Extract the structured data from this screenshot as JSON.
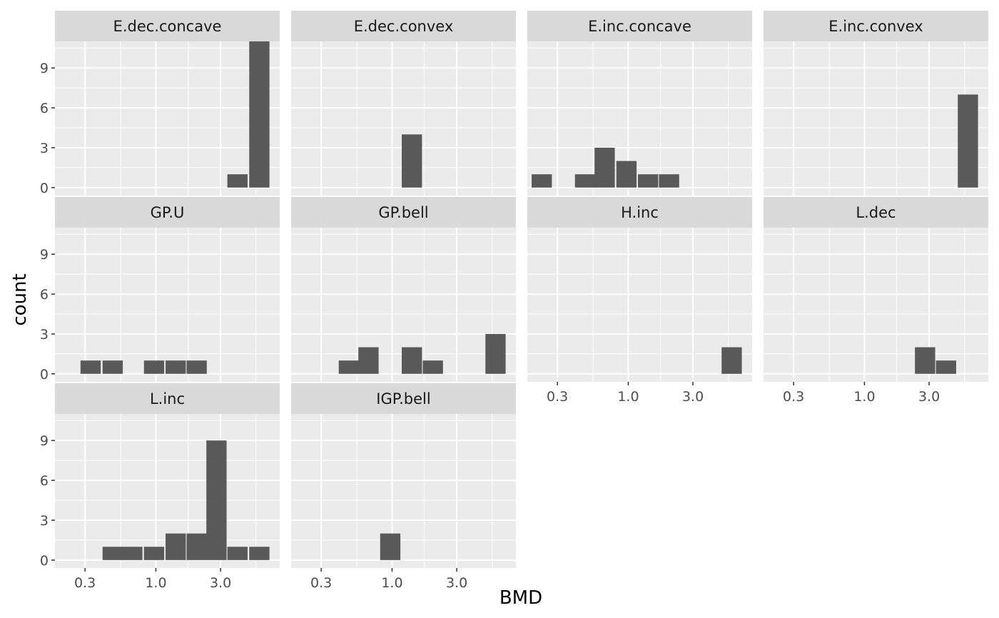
{
  "chart_data": {
    "type": "bar",
    "subtype": "faceted histogram",
    "xlabel": "BMD",
    "ylabel": "count",
    "x_scale": "log10",
    "x_ticks": [
      0.3,
      1.0,
      3.0
    ],
    "x_tick_labels": [
      "0.3",
      "1.0",
      "3.0"
    ],
    "y_ticks": [
      0,
      3,
      6,
      9
    ],
    "y_tick_labels": [
      "0",
      "3",
      "6",
      "9"
    ],
    "ylim": [
      0,
      11
    ],
    "grid": true,
    "colors": {
      "bar": "#595959",
      "panel": "#ebebeb",
      "strip": "#d9d9d9",
      "grid": "#ffffff"
    },
    "panels": [
      {
        "name": "E.dec.concave",
        "bins": [
          {
            "x": 4.0,
            "count": 1
          },
          {
            "x": 5.8,
            "count": 11
          }
        ]
      },
      {
        "name": "E.dec.convex",
        "bins": [
          {
            "x": 1.4,
            "count": 4
          }
        ]
      },
      {
        "name": "E.inc.concave",
        "bins": [
          {
            "x": 0.23,
            "count": 1
          },
          {
            "x": 0.48,
            "count": 1
          },
          {
            "x": 0.67,
            "count": 3
          },
          {
            "x": 0.97,
            "count": 2
          },
          {
            "x": 1.4,
            "count": 1
          },
          {
            "x": 2.0,
            "count": 1
          }
        ]
      },
      {
        "name": "E.inc.convex",
        "bins": [
          {
            "x": 5.8,
            "count": 7
          }
        ]
      },
      {
        "name": "GP.U",
        "bins": [
          {
            "x": 0.33,
            "count": 1
          },
          {
            "x": 0.48,
            "count": 1
          },
          {
            "x": 0.97,
            "count": 1
          },
          {
            "x": 1.4,
            "count": 1
          },
          {
            "x": 2.0,
            "count": 1
          }
        ]
      },
      {
        "name": "GP.bell",
        "bins": [
          {
            "x": 0.48,
            "count": 1
          },
          {
            "x": 0.67,
            "count": 2
          },
          {
            "x": 1.4,
            "count": 2
          },
          {
            "x": 2.0,
            "count": 1
          },
          {
            "x": 5.8,
            "count": 3
          }
        ]
      },
      {
        "name": "H.inc",
        "bins": [
          {
            "x": 5.8,
            "count": 2
          }
        ]
      },
      {
        "name": "L.dec",
        "bins": [
          {
            "x": 2.8,
            "count": 2
          },
          {
            "x": 4.0,
            "count": 1
          }
        ]
      },
      {
        "name": "L.inc",
        "bins": [
          {
            "x": 0.48,
            "count": 1
          },
          {
            "x": 0.67,
            "count": 1
          },
          {
            "x": 0.97,
            "count": 1
          },
          {
            "x": 1.4,
            "count": 2
          },
          {
            "x": 2.0,
            "count": 2
          },
          {
            "x": 2.8,
            "count": 9
          },
          {
            "x": 4.0,
            "count": 1
          },
          {
            "x": 5.8,
            "count": 1
          }
        ]
      },
      {
        "name": "IGP.bell",
        "bins": [
          {
            "x": 0.97,
            "count": 2
          }
        ]
      }
    ]
  }
}
